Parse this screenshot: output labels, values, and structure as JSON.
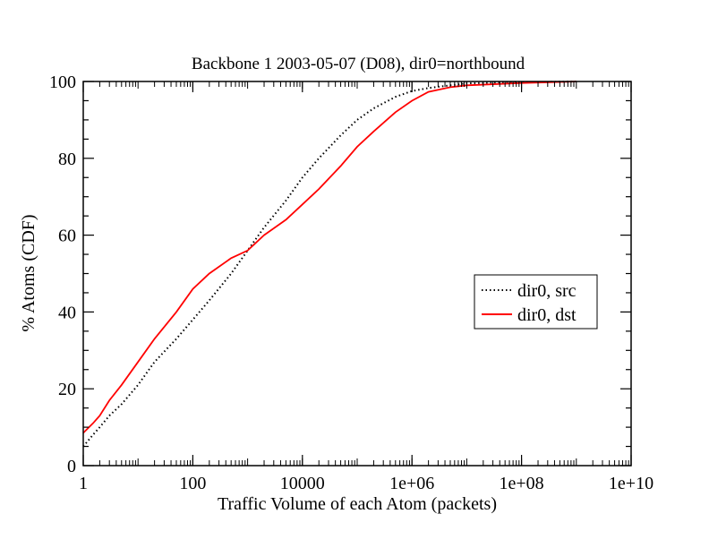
{
  "chart_data": {
    "type": "line",
    "title": "Backbone 1 2003-05-07 (D08), dir0=northbound",
    "xlabel": "Traffic Volume of each Atom (packets)",
    "ylabel": "% Atoms (CDF)",
    "x_scale": "log",
    "xlim": [
      1,
      10000000000
    ],
    "ylim": [
      0,
      100
    ],
    "x_ticks": [
      1,
      100,
      10000,
      1000000,
      100000000,
      10000000000
    ],
    "x_tick_labels": [
      "1",
      "100",
      "10000",
      "1e+06",
      "1e+08",
      "1e+10"
    ],
    "y_ticks": [
      0,
      20,
      40,
      60,
      80,
      100
    ],
    "y_tick_labels": [
      "0",
      "20",
      "40",
      "60",
      "80",
      "100"
    ],
    "grid": false,
    "legend_position": "right",
    "series": [
      {
        "name": "dir0, src",
        "color": "#000000",
        "style": "dotted",
        "x": [
          1,
          1.5,
          2,
          3,
          5,
          10,
          20,
          50,
          100,
          200,
          500,
          1000,
          2000,
          5000,
          10000,
          20000,
          50000,
          100000,
          200000,
          500000,
          1000000,
          2000000,
          5000000,
          10000000,
          100000000,
          1000000000
        ],
        "y": [
          5,
          8,
          10,
          13,
          16,
          21,
          27,
          33,
          38,
          43,
          50,
          56,
          62,
          69,
          75,
          80,
          86,
          90,
          93,
          96,
          97.5,
          98.3,
          99,
          99.5,
          99.8,
          100
        ]
      },
      {
        "name": "dir0, dst",
        "color": "#ff0000",
        "style": "solid",
        "x": [
          1,
          1.5,
          2,
          3,
          5,
          10,
          20,
          50,
          100,
          200,
          500,
          1000,
          2000,
          5000,
          10000,
          20000,
          50000,
          100000,
          200000,
          500000,
          1000000,
          2000000,
          5000000,
          10000000,
          100000000,
          1000000000
        ],
        "y": [
          8.5,
          11,
          13,
          17,
          21,
          27,
          33,
          40,
          46,
          50,
          54,
          56,
          60,
          64,
          68,
          72,
          78,
          83,
          87,
          92,
          95,
          97.3,
          98.5,
          99,
          99.6,
          100
        ]
      }
    ]
  }
}
